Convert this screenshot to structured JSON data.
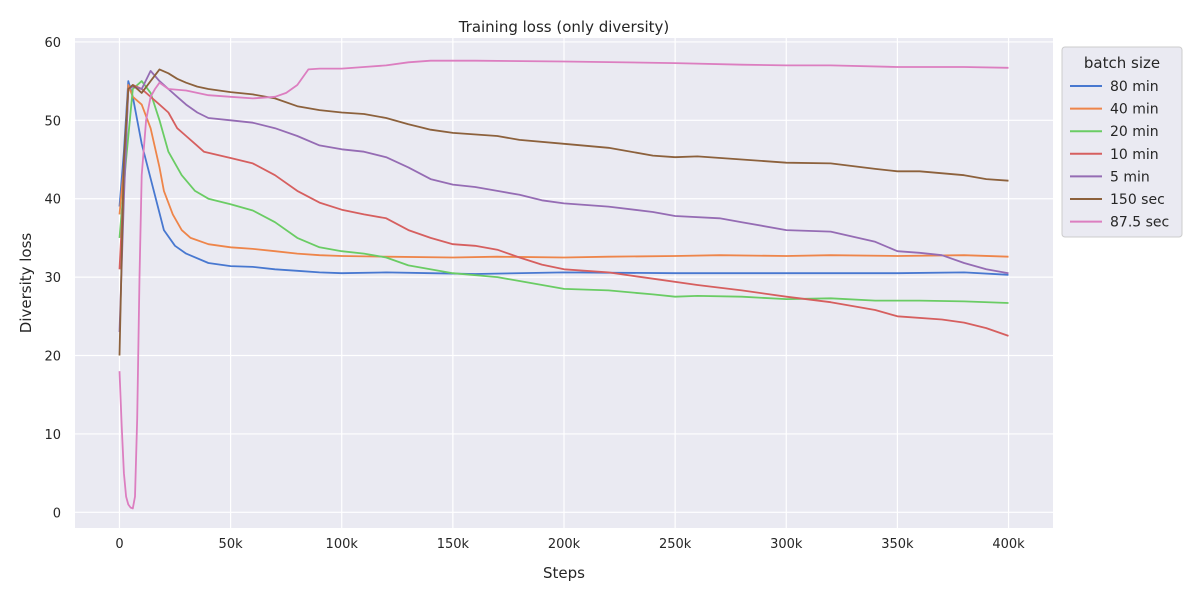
{
  "chart_data": {
    "type": "line",
    "title": "Training loss (only diversity)",
    "xlabel": "Steps",
    "ylabel": "Diversity loss",
    "xlim": [
      -20000,
      420000
    ],
    "ylim": [
      -2,
      60.5
    ],
    "xticks": [
      0,
      50000,
      100000,
      150000,
      200000,
      250000,
      300000,
      350000,
      400000
    ],
    "xtick_labels": [
      "0",
      "50k",
      "100k",
      "150k",
      "200k",
      "250k",
      "300k",
      "350k",
      "400k"
    ],
    "yticks": [
      0,
      10,
      20,
      30,
      40,
      50,
      60
    ],
    "ytick_labels": [
      "0",
      "10",
      "20",
      "30",
      "40",
      "50",
      "60"
    ],
    "grid": true,
    "legend": {
      "title": "batch size",
      "position": "right-top-outside"
    },
    "series": [
      {
        "name": "80 min",
        "color": "#4878d0",
        "points": [
          [
            0,
            39
          ],
          [
            2000,
            46
          ],
          [
            4000,
            55
          ],
          [
            6000,
            53
          ],
          [
            10000,
            47
          ],
          [
            20000,
            36
          ],
          [
            25000,
            34
          ],
          [
            30000,
            33
          ],
          [
            40000,
            31.8
          ],
          [
            50000,
            31.4
          ],
          [
            60000,
            31.3
          ],
          [
            70000,
            31
          ],
          [
            80000,
            30.8
          ],
          [
            90000,
            30.6
          ],
          [
            100000,
            30.5
          ],
          [
            120000,
            30.6
          ],
          [
            140000,
            30.5
          ],
          [
            160000,
            30.4
          ],
          [
            200000,
            30.6
          ],
          [
            250000,
            30.5
          ],
          [
            300000,
            30.5
          ],
          [
            350000,
            30.5
          ],
          [
            380000,
            30.6
          ],
          [
            400000,
            30.3
          ]
        ]
      },
      {
        "name": "40 min",
        "color": "#ee854a",
        "points": [
          [
            0,
            38
          ],
          [
            2000,
            44
          ],
          [
            4000,
            54.5
          ],
          [
            6000,
            53
          ],
          [
            10000,
            52
          ],
          [
            14000,
            49
          ],
          [
            18000,
            44
          ],
          [
            20000,
            41
          ],
          [
            24000,
            38
          ],
          [
            28000,
            36
          ],
          [
            32000,
            35
          ],
          [
            40000,
            34.2
          ],
          [
            50000,
            33.8
          ],
          [
            60000,
            33.6
          ],
          [
            70000,
            33.3
          ],
          [
            80000,
            33
          ],
          [
            90000,
            32.8
          ],
          [
            100000,
            32.7
          ],
          [
            120000,
            32.6
          ],
          [
            150000,
            32.5
          ],
          [
            170000,
            32.6
          ],
          [
            200000,
            32.5
          ],
          [
            220000,
            32.6
          ],
          [
            250000,
            32.7
          ],
          [
            270000,
            32.8
          ],
          [
            300000,
            32.7
          ],
          [
            320000,
            32.8
          ],
          [
            350000,
            32.7
          ],
          [
            380000,
            32.8
          ],
          [
            400000,
            32.6
          ]
        ]
      },
      {
        "name": "20 min",
        "color": "#6acc64",
        "points": [
          [
            0,
            35
          ],
          [
            3000,
            45
          ],
          [
            6000,
            54
          ],
          [
            10000,
            55
          ],
          [
            14000,
            53.5
          ],
          [
            18000,
            50
          ],
          [
            22000,
            46
          ],
          [
            28000,
            43
          ],
          [
            34000,
            41
          ],
          [
            40000,
            40
          ],
          [
            50000,
            39.3
          ],
          [
            60000,
            38.5
          ],
          [
            70000,
            37
          ],
          [
            80000,
            35
          ],
          [
            90000,
            33.8
          ],
          [
            100000,
            33.3
          ],
          [
            110000,
            33
          ],
          [
            120000,
            32.5
          ],
          [
            130000,
            31.5
          ],
          [
            150000,
            30.5
          ],
          [
            170000,
            30
          ],
          [
            180000,
            29.5
          ],
          [
            200000,
            28.5
          ],
          [
            220000,
            28.3
          ],
          [
            240000,
            27.8
          ],
          [
            250000,
            27.5
          ],
          [
            260000,
            27.6
          ],
          [
            280000,
            27.5
          ],
          [
            300000,
            27.2
          ],
          [
            320000,
            27.3
          ],
          [
            340000,
            27
          ],
          [
            360000,
            27
          ],
          [
            380000,
            26.9
          ],
          [
            400000,
            26.7
          ]
        ]
      },
      {
        "name": "10 min",
        "color": "#d65f5f",
        "points": [
          [
            0,
            31
          ],
          [
            2000,
            42
          ],
          [
            4000,
            54
          ],
          [
            6000,
            54.5
          ],
          [
            10000,
            54
          ],
          [
            14000,
            53
          ],
          [
            18000,
            52
          ],
          [
            22000,
            51
          ],
          [
            26000,
            49
          ],
          [
            30000,
            48
          ],
          [
            34000,
            47
          ],
          [
            38000,
            46
          ],
          [
            50000,
            45.2
          ],
          [
            60000,
            44.5
          ],
          [
            70000,
            43
          ],
          [
            80000,
            41
          ],
          [
            90000,
            39.5
          ],
          [
            100000,
            38.6
          ],
          [
            110000,
            38
          ],
          [
            120000,
            37.5
          ],
          [
            130000,
            36
          ],
          [
            140000,
            35
          ],
          [
            150000,
            34.2
          ],
          [
            160000,
            34
          ],
          [
            170000,
            33.5
          ],
          [
            180000,
            32.5
          ],
          [
            190000,
            31.6
          ],
          [
            200000,
            31
          ],
          [
            220000,
            30.6
          ],
          [
            240000,
            29.8
          ],
          [
            260000,
            29
          ],
          [
            280000,
            28.3
          ],
          [
            300000,
            27.5
          ],
          [
            320000,
            26.8
          ],
          [
            340000,
            25.8
          ],
          [
            350000,
            25
          ],
          [
            370000,
            24.6
          ],
          [
            380000,
            24.2
          ],
          [
            390000,
            23.5
          ],
          [
            400000,
            22.5
          ]
        ]
      },
      {
        "name": "5 min",
        "color": "#956cb4",
        "points": [
          [
            0,
            23
          ],
          [
            2000,
            40
          ],
          [
            4000,
            54
          ],
          [
            6000,
            54.3
          ],
          [
            10000,
            54
          ],
          [
            14000,
            56.3
          ],
          [
            18000,
            55
          ],
          [
            22000,
            54
          ],
          [
            26000,
            53
          ],
          [
            30000,
            52
          ],
          [
            35000,
            51
          ],
          [
            40000,
            50.3
          ],
          [
            50000,
            50
          ],
          [
            60000,
            49.7
          ],
          [
            70000,
            49
          ],
          [
            80000,
            48
          ],
          [
            90000,
            46.8
          ],
          [
            100000,
            46.3
          ],
          [
            110000,
            46
          ],
          [
            120000,
            45.3
          ],
          [
            130000,
            44
          ],
          [
            140000,
            42.5
          ],
          [
            150000,
            41.8
          ],
          [
            160000,
            41.5
          ],
          [
            170000,
            41
          ],
          [
            180000,
            40.5
          ],
          [
            190000,
            39.8
          ],
          [
            200000,
            39.4
          ],
          [
            220000,
            39
          ],
          [
            240000,
            38.3
          ],
          [
            250000,
            37.8
          ],
          [
            270000,
            37.5
          ],
          [
            280000,
            37
          ],
          [
            300000,
            36
          ],
          [
            320000,
            35.8
          ],
          [
            340000,
            34.5
          ],
          [
            350000,
            33.3
          ],
          [
            360000,
            33.1
          ],
          [
            370000,
            32.8
          ],
          [
            380000,
            31.8
          ],
          [
            390000,
            31
          ],
          [
            400000,
            30.5
          ]
        ]
      },
      {
        "name": "150 sec",
        "color": "#8c613c",
        "points": [
          [
            0,
            20
          ],
          [
            2000,
            45
          ],
          [
            4000,
            54
          ],
          [
            6000,
            54.5
          ],
          [
            10000,
            53.5
          ],
          [
            14000,
            55
          ],
          [
            18000,
            56.5
          ],
          [
            22000,
            56
          ],
          [
            26000,
            55.3
          ],
          [
            30000,
            54.8
          ],
          [
            35000,
            54.3
          ],
          [
            40000,
            54
          ],
          [
            50000,
            53.6
          ],
          [
            60000,
            53.3
          ],
          [
            70000,
            52.8
          ],
          [
            80000,
            51.8
          ],
          [
            90000,
            51.3
          ],
          [
            100000,
            51
          ],
          [
            110000,
            50.8
          ],
          [
            120000,
            50.3
          ],
          [
            130000,
            49.5
          ],
          [
            140000,
            48.8
          ],
          [
            150000,
            48.4
          ],
          [
            170000,
            48
          ],
          [
            180000,
            47.5
          ],
          [
            200000,
            47
          ],
          [
            220000,
            46.5
          ],
          [
            240000,
            45.5
          ],
          [
            250000,
            45.3
          ],
          [
            260000,
            45.4
          ],
          [
            280000,
            45
          ],
          [
            300000,
            44.6
          ],
          [
            320000,
            44.5
          ],
          [
            340000,
            43.8
          ],
          [
            350000,
            43.5
          ],
          [
            360000,
            43.5
          ],
          [
            380000,
            43
          ],
          [
            390000,
            42.5
          ],
          [
            400000,
            42.3
          ]
        ]
      },
      {
        "name": "87.5 sec",
        "color": "#dc7ec0",
        "points": [
          [
            0,
            18
          ],
          [
            1000,
            11
          ],
          [
            2000,
            5
          ],
          [
            3000,
            2
          ],
          [
            4000,
            1
          ],
          [
            5000,
            0.6
          ],
          [
            6000,
            0.5
          ],
          [
            7000,
            2
          ],
          [
            8000,
            12
          ],
          [
            9000,
            30
          ],
          [
            10000,
            43
          ],
          [
            12000,
            50
          ],
          [
            14000,
            53
          ],
          [
            16000,
            54
          ],
          [
            18000,
            54.8
          ],
          [
            22000,
            54
          ],
          [
            30000,
            53.8
          ],
          [
            40000,
            53.2
          ],
          [
            50000,
            53
          ],
          [
            60000,
            52.8
          ],
          [
            70000,
            53
          ],
          [
            75000,
            53.5
          ],
          [
            80000,
            54.5
          ],
          [
            85000,
            56.5
          ],
          [
            90000,
            56.6
          ],
          [
            100000,
            56.6
          ],
          [
            110000,
            56.8
          ],
          [
            120000,
            57
          ],
          [
            130000,
            57.4
          ],
          [
            140000,
            57.6
          ],
          [
            160000,
            57.6
          ],
          [
            200000,
            57.5
          ],
          [
            250000,
            57.3
          ],
          [
            280000,
            57.1
          ],
          [
            300000,
            57
          ],
          [
            320000,
            57
          ],
          [
            350000,
            56.8
          ],
          [
            380000,
            56.8
          ],
          [
            400000,
            56.7
          ]
        ]
      }
    ]
  }
}
